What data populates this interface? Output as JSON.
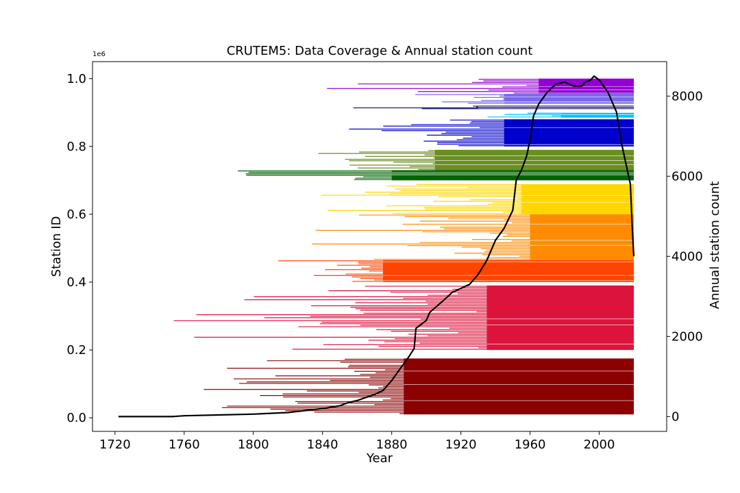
{
  "chart_data": {
    "type": "bar",
    "title": "CRUTEM5: Data Coverage & Annual station count",
    "xlabel": "Year",
    "ylabel": "Station ID",
    "y2label": "Annual station count",
    "y_offset_label": "1e6",
    "xlim": [
      1707,
      2039
    ],
    "ylim": [
      -0.04,
      1.05
    ],
    "y2lim": [
      -370,
      8860
    ],
    "x_ticks": [
      1720,
      1760,
      1800,
      1840,
      1880,
      1920,
      1960,
      2000
    ],
    "y_ticks": [
      "0.0",
      "0.2",
      "0.4",
      "0.6",
      "0.8",
      "1.0"
    ],
    "y_tick_values": [
      0.0,
      0.2,
      0.4,
      0.6,
      0.8,
      1.0
    ],
    "y2_ticks": [
      0,
      2000,
      4000,
      6000,
      8000
    ],
    "grid": false,
    "legend": "none",
    "coverage_bands": [
      {
        "color": "#8b0000",
        "ymin": 0.01,
        "ymax": 0.175,
        "full_from": 1887,
        "earliest": 1722
      },
      {
        "color": "#dc143c",
        "ymin": 0.2,
        "ymax": 0.39,
        "full_from": 1935,
        "earliest": 1743
      },
      {
        "color": "#ff4500",
        "ymin": 0.4,
        "ymax": 0.465,
        "full_from": 1875,
        "earliest": 1808
      },
      {
        "color": "#ff8c00",
        "ymin": 0.465,
        "ymax": 0.6,
        "full_from": 1960,
        "earliest": 1826
      },
      {
        "color": "#ffd700",
        "ymin": 0.6,
        "ymax": 0.69,
        "full_from": 1955,
        "earliest": 1787
      },
      {
        "color": "#006400",
        "ymin": 0.7,
        "ymax": 0.73,
        "full_from": 1880,
        "earliest": 1757
      },
      {
        "color": "#6b8e23",
        "ymin": 0.73,
        "ymax": 0.79,
        "full_from": 1905,
        "earliest": 1812
      },
      {
        "color": "#0000cd",
        "ymin": 0.8,
        "ymax": 0.88,
        "full_from": 1945,
        "earliest": 1840
      },
      {
        "color": "#00bfff",
        "ymin": 0.885,
        "ymax": 0.9,
        "full_from": 1978,
        "earliest": 1895
      },
      {
        "color": "#191970",
        "ymin": 0.91,
        "ymax": 0.92,
        "full_from": 1930,
        "earliest": 1845
      },
      {
        "color": "#7b68ee",
        "ymin": 0.925,
        "ymax": 0.955,
        "full_from": 1945,
        "earliest": 1840
      },
      {
        "color": "#9400d3",
        "ymin": 0.955,
        "ymax": 1.0,
        "full_from": 1965,
        "earliest": 1824
      }
    ],
    "band_end_year": 2020,
    "series": [
      {
        "color": "#000000",
        "x": [
          1722,
          1753,
          1760,
          1780,
          1800,
          1820,
          1840,
          1850,
          1855,
          1860,
          1870,
          1875,
          1880,
          1885,
          1890,
          1893,
          1894,
          1900,
          1902,
          1910,
          1915,
          1920,
          1925,
          1930,
          1935,
          1940,
          1945,
          1950,
          1952,
          1955,
          1958,
          1960,
          1962,
          1965,
          1970,
          1975,
          1980,
          1985,
          1990,
          1992,
          1995,
          1997,
          2000,
          2005,
          2010,
          2013,
          2015,
          2018,
          2019,
          2020
        ],
        "y": [
          0,
          0,
          20,
          40,
          60,
          100,
          200,
          270,
          350,
          400,
          550,
          650,
          900,
          1200,
          1500,
          1700,
          2200,
          2400,
          2600,
          2900,
          3100,
          3200,
          3300,
          3550,
          3900,
          4400,
          4700,
          5150,
          5900,
          6150,
          6500,
          6900,
          7500,
          7800,
          8100,
          8300,
          8350,
          8250,
          8250,
          8350,
          8400,
          8500,
          8400,
          8100,
          7600,
          6800,
          6400,
          5800,
          4800,
          4000
        ]
      }
    ]
  }
}
